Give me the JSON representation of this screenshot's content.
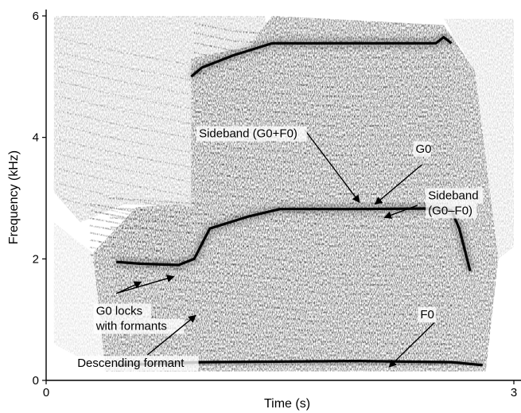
{
  "chart_data": {
    "type": "heatmap",
    "xlabel": "Time (s)",
    "ylabel": "Frequency (kHz)",
    "xlim": [
      0,
      3
    ],
    "ylim": [
      0,
      6
    ],
    "x_ticks": [
      "0",
      "3"
    ],
    "y_ticks": [
      "0",
      "2",
      "4",
      "6"
    ],
    "colormap": [
      "#ffffff",
      "#000000"
    ],
    "tracks": [
      {
        "name": "Sideband (G0+F0)",
        "points": [
          [
            0.93,
            5.0
          ],
          [
            1.0,
            5.15
          ],
          [
            1.2,
            5.35
          ],
          [
            1.45,
            5.55
          ],
          [
            2.5,
            5.55
          ],
          [
            2.55,
            5.65
          ],
          [
            2.6,
            5.55
          ]
        ]
      },
      {
        "name": "G0",
        "points": [
          [
            0.45,
            1.95
          ],
          [
            0.6,
            1.92
          ],
          [
            0.85,
            1.9
          ],
          [
            0.95,
            2.0
          ],
          [
            1.05,
            2.5
          ],
          [
            1.3,
            2.7
          ],
          [
            1.5,
            2.82
          ],
          [
            2.0,
            2.82
          ],
          [
            2.45,
            2.83
          ],
          [
            2.6,
            2.8
          ],
          [
            2.65,
            2.5
          ],
          [
            2.72,
            1.8
          ]
        ]
      },
      {
        "name": "F0",
        "points": [
          [
            0.45,
            0.25
          ],
          [
            1.0,
            0.3
          ],
          [
            2.0,
            0.32
          ],
          [
            2.6,
            0.3
          ],
          [
            2.8,
            0.25
          ]
        ]
      }
    ],
    "annotations": [
      {
        "lines": [
          "Sideband (G0+F0)"
        ],
        "text_x": 0.98,
        "text_y": 4.0,
        "arrow_from": [
          1.66,
          4.12
        ],
        "arrow_to": [
          2.01,
          2.93
        ]
      },
      {
        "lines": [
          "G0"
        ],
        "text_x": 2.37,
        "text_y": 3.75,
        "arrow_from": [
          2.41,
          3.55
        ],
        "arrow_to": [
          2.11,
          2.9
        ]
      },
      {
        "lines": [
          "Sideband",
          "(G0–F0)"
        ],
        "text_x": 2.45,
        "text_y": 2.98,
        "arrow_from": [
          2.38,
          2.88
        ],
        "arrow_to": [
          2.17,
          2.68
        ]
      },
      {
        "lines": [
          "G0 locks",
          "with formants"
        ],
        "text_x": 0.32,
        "text_y": 1.08,
        "arrow_from": [
          0.46,
          1.44
        ],
        "arrow_to": [
          0.82,
          1.71
        ]
      },
      {
        "lines": [],
        "text_x": 0,
        "text_y": 0,
        "arrow_from": [
          0.45,
          1.43
        ],
        "arrow_to": [
          0.61,
          1.62
        ]
      },
      {
        "lines": [
          "Descending formant"
        ],
        "text_x": 0.2,
        "text_y": 0.22,
        "arrow_from": [
          0.65,
          0.42
        ],
        "arrow_to": [
          0.96,
          1.07
        ]
      },
      {
        "lines": [
          "F0"
        ],
        "text_x": 2.4,
        "text_y": 1.02,
        "arrow_from": [
          2.49,
          0.95
        ],
        "arrow_to": [
          2.2,
          0.22
        ]
      }
    ]
  }
}
